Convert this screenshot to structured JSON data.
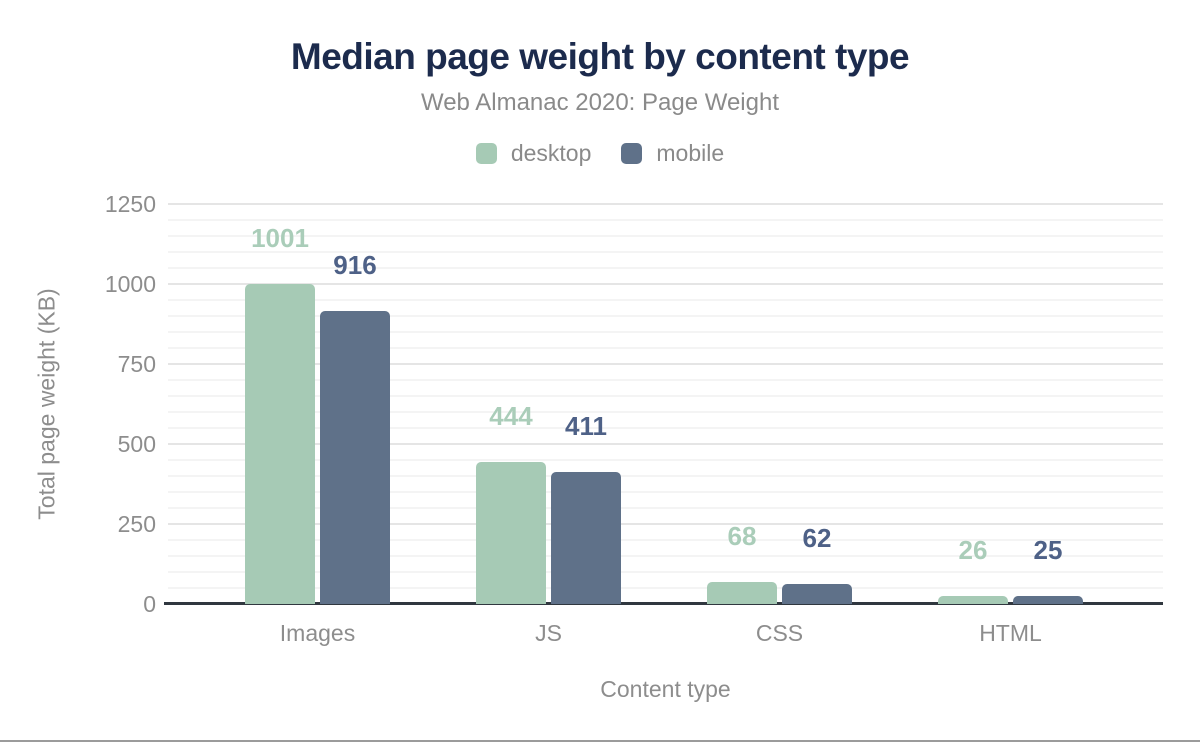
{
  "chart_data": {
    "type": "bar",
    "title": "Median page weight by content type",
    "subtitle": "Web Almanac 2020: Page Weight",
    "categories": [
      "Images",
      "JS",
      "CSS",
      "HTML"
    ],
    "series": [
      {
        "name": "desktop",
        "color": "#a6cab5",
        "label_color": "#aacdb9",
        "values": [
          1001,
          444,
          68,
          26
        ]
      },
      {
        "name": "mobile",
        "color": "#5f7189",
        "label_color": "#4e6187",
        "values": [
          916,
          411,
          62,
          25
        ]
      }
    ],
    "xlabel": "Content type",
    "ylabel": "Total page weight (KB)",
    "ylim": [
      0,
      1250
    ],
    "yticks": [
      0,
      250,
      500,
      750,
      1000,
      1250
    ],
    "minor_grid_step": 50,
    "grid": true,
    "legend_position": "top",
    "data_labels": true
  },
  "colors": {
    "title": "#1c2b4d",
    "subtitle_text": "#8a8a8a",
    "axis_text": "#8d8d8d",
    "legend_text": "#8a8a8a",
    "major_gridline": "#e5e5e5",
    "minor_gridline": "#f4f4f4",
    "axis_line": "#30373f",
    "desktop": "#a6cab5",
    "mobile": "#5f7189"
  }
}
